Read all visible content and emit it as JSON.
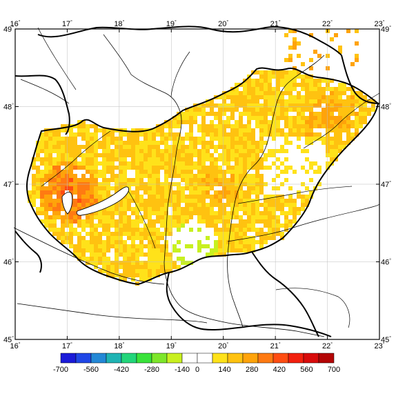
{
  "map": {
    "lon_range": [
      16,
      23
    ],
    "lat_range": [
      45,
      49
    ],
    "lon_ticks": [
      {
        "value": 16,
        "label": "16"
      },
      {
        "value": 17,
        "label": "17"
      },
      {
        "value": 18,
        "label": "18"
      },
      {
        "value": 19,
        "label": "19"
      },
      {
        "value": 20,
        "label": "20"
      },
      {
        "value": 21,
        "label": "21"
      },
      {
        "value": 22,
        "label": "22"
      },
      {
        "value": 23,
        "label": "23"
      }
    ],
    "lat_ticks": [
      {
        "value": 45,
        "label": "45"
      },
      {
        "value": 46,
        "label": "46"
      },
      {
        "value": 47,
        "label": "47"
      },
      {
        "value": 48,
        "label": "48"
      },
      {
        "value": 49,
        "label": "49"
      }
    ],
    "degree_symbol": "°",
    "grid": true,
    "land_color": "#ffffff",
    "border_color": "#000000",
    "river_color": "#000000"
  },
  "colorbar": {
    "labels": [
      "-700",
      "-560",
      "-420",
      "-280",
      "-140",
      "0",
      "140",
      "280",
      "420",
      "560",
      "700"
    ],
    "colors": [
      "#1a1ad8",
      "#1f46e6",
      "#2388d6",
      "#1fb3b3",
      "#22d57a",
      "#39e23a",
      "#7de62a",
      "#c8f020",
      "#ffffff",
      "#ffffff",
      "#ffe21a",
      "#ffc210",
      "#ffa30a",
      "#ff7a12",
      "#ff4d12",
      "#f2200e",
      "#d80b0b",
      "#b30505"
    ]
  }
}
